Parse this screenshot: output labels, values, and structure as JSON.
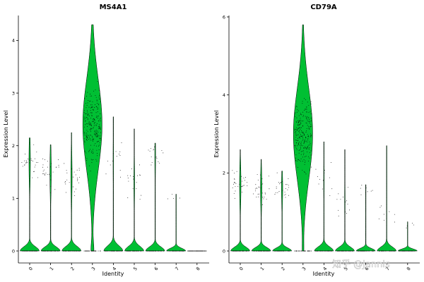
{
  "chart_data": [
    {
      "type": "violin",
      "title": "MS4A1",
      "xlabel": "Identity",
      "ylabel": "Expression Level",
      "categories": [
        "0",
        "1",
        "2",
        "3",
        "4",
        "5",
        "6",
        "7",
        "8"
      ],
      "yticks": [
        0,
        1,
        2,
        3,
        4
      ],
      "ylim": [
        0,
        4.3
      ],
      "fill_color": "#00bf33",
      "violins": [
        {
          "category": "0",
          "max": 2.15,
          "expressed_fraction": 0.07,
          "expressed_mean": 1.7
        },
        {
          "category": "1",
          "max": 2.02,
          "expressed_fraction": 0.07,
          "expressed_mean": 1.5
        },
        {
          "category": "2",
          "max": 2.25,
          "expressed_fraction": 0.06,
          "expressed_mean": 1.4
        },
        {
          "category": "3",
          "max": 4.3,
          "expressed_fraction": 0.88,
          "expressed_mean": 2.4
        },
        {
          "category": "4",
          "max": 2.55,
          "expressed_fraction": 0.03,
          "expressed_mean": 1.7
        },
        {
          "category": "5",
          "max": 2.32,
          "expressed_fraction": 0.04,
          "expressed_mean": 1.3
        },
        {
          "category": "6",
          "max": 2.05,
          "expressed_fraction": 0.04,
          "expressed_mean": 1.8
        },
        {
          "category": "7",
          "max": 1.08,
          "expressed_fraction": 0.01,
          "expressed_mean": 1.08
        },
        {
          "category": "8",
          "max": 0.0,
          "expressed_fraction": 0.0,
          "expressed_mean": 0.0
        }
      ]
    },
    {
      "type": "violin",
      "title": "CD79A",
      "xlabel": "Identity",
      "ylabel": "Expression Level",
      "categories": [
        "0",
        "1",
        "2",
        "3",
        "4",
        "5",
        "6",
        "7",
        "8"
      ],
      "yticks": [
        0,
        2,
        4,
        6
      ],
      "ylim": [
        0,
        6.0
      ],
      "fill_color": "#00bf33",
      "violins": [
        {
          "category": "0",
          "max": 2.6,
          "expressed_fraction": 0.07,
          "expressed_mean": 1.7
        },
        {
          "category": "1",
          "max": 2.35,
          "expressed_fraction": 0.07,
          "expressed_mean": 1.6
        },
        {
          "category": "2",
          "max": 2.05,
          "expressed_fraction": 0.06,
          "expressed_mean": 1.6
        },
        {
          "category": "3",
          "max": 5.8,
          "expressed_fraction": 0.95,
          "expressed_mean": 3.0
        },
        {
          "category": "4",
          "max": 2.8,
          "expressed_fraction": 0.03,
          "expressed_mean": 1.8
        },
        {
          "category": "5",
          "max": 2.6,
          "expressed_fraction": 0.03,
          "expressed_mean": 1.3
        },
        {
          "category": "6",
          "max": 1.7,
          "expressed_fraction": 0.02,
          "expressed_mean": 1.65
        },
        {
          "category": "7",
          "max": 2.7,
          "expressed_fraction": 0.02,
          "expressed_mean": 1.05
        },
        {
          "category": "8",
          "max": 0.75,
          "expressed_fraction": 0.01,
          "expressed_mean": 0.75
        }
      ]
    }
  ],
  "watermark": "知乎 @Jannis"
}
